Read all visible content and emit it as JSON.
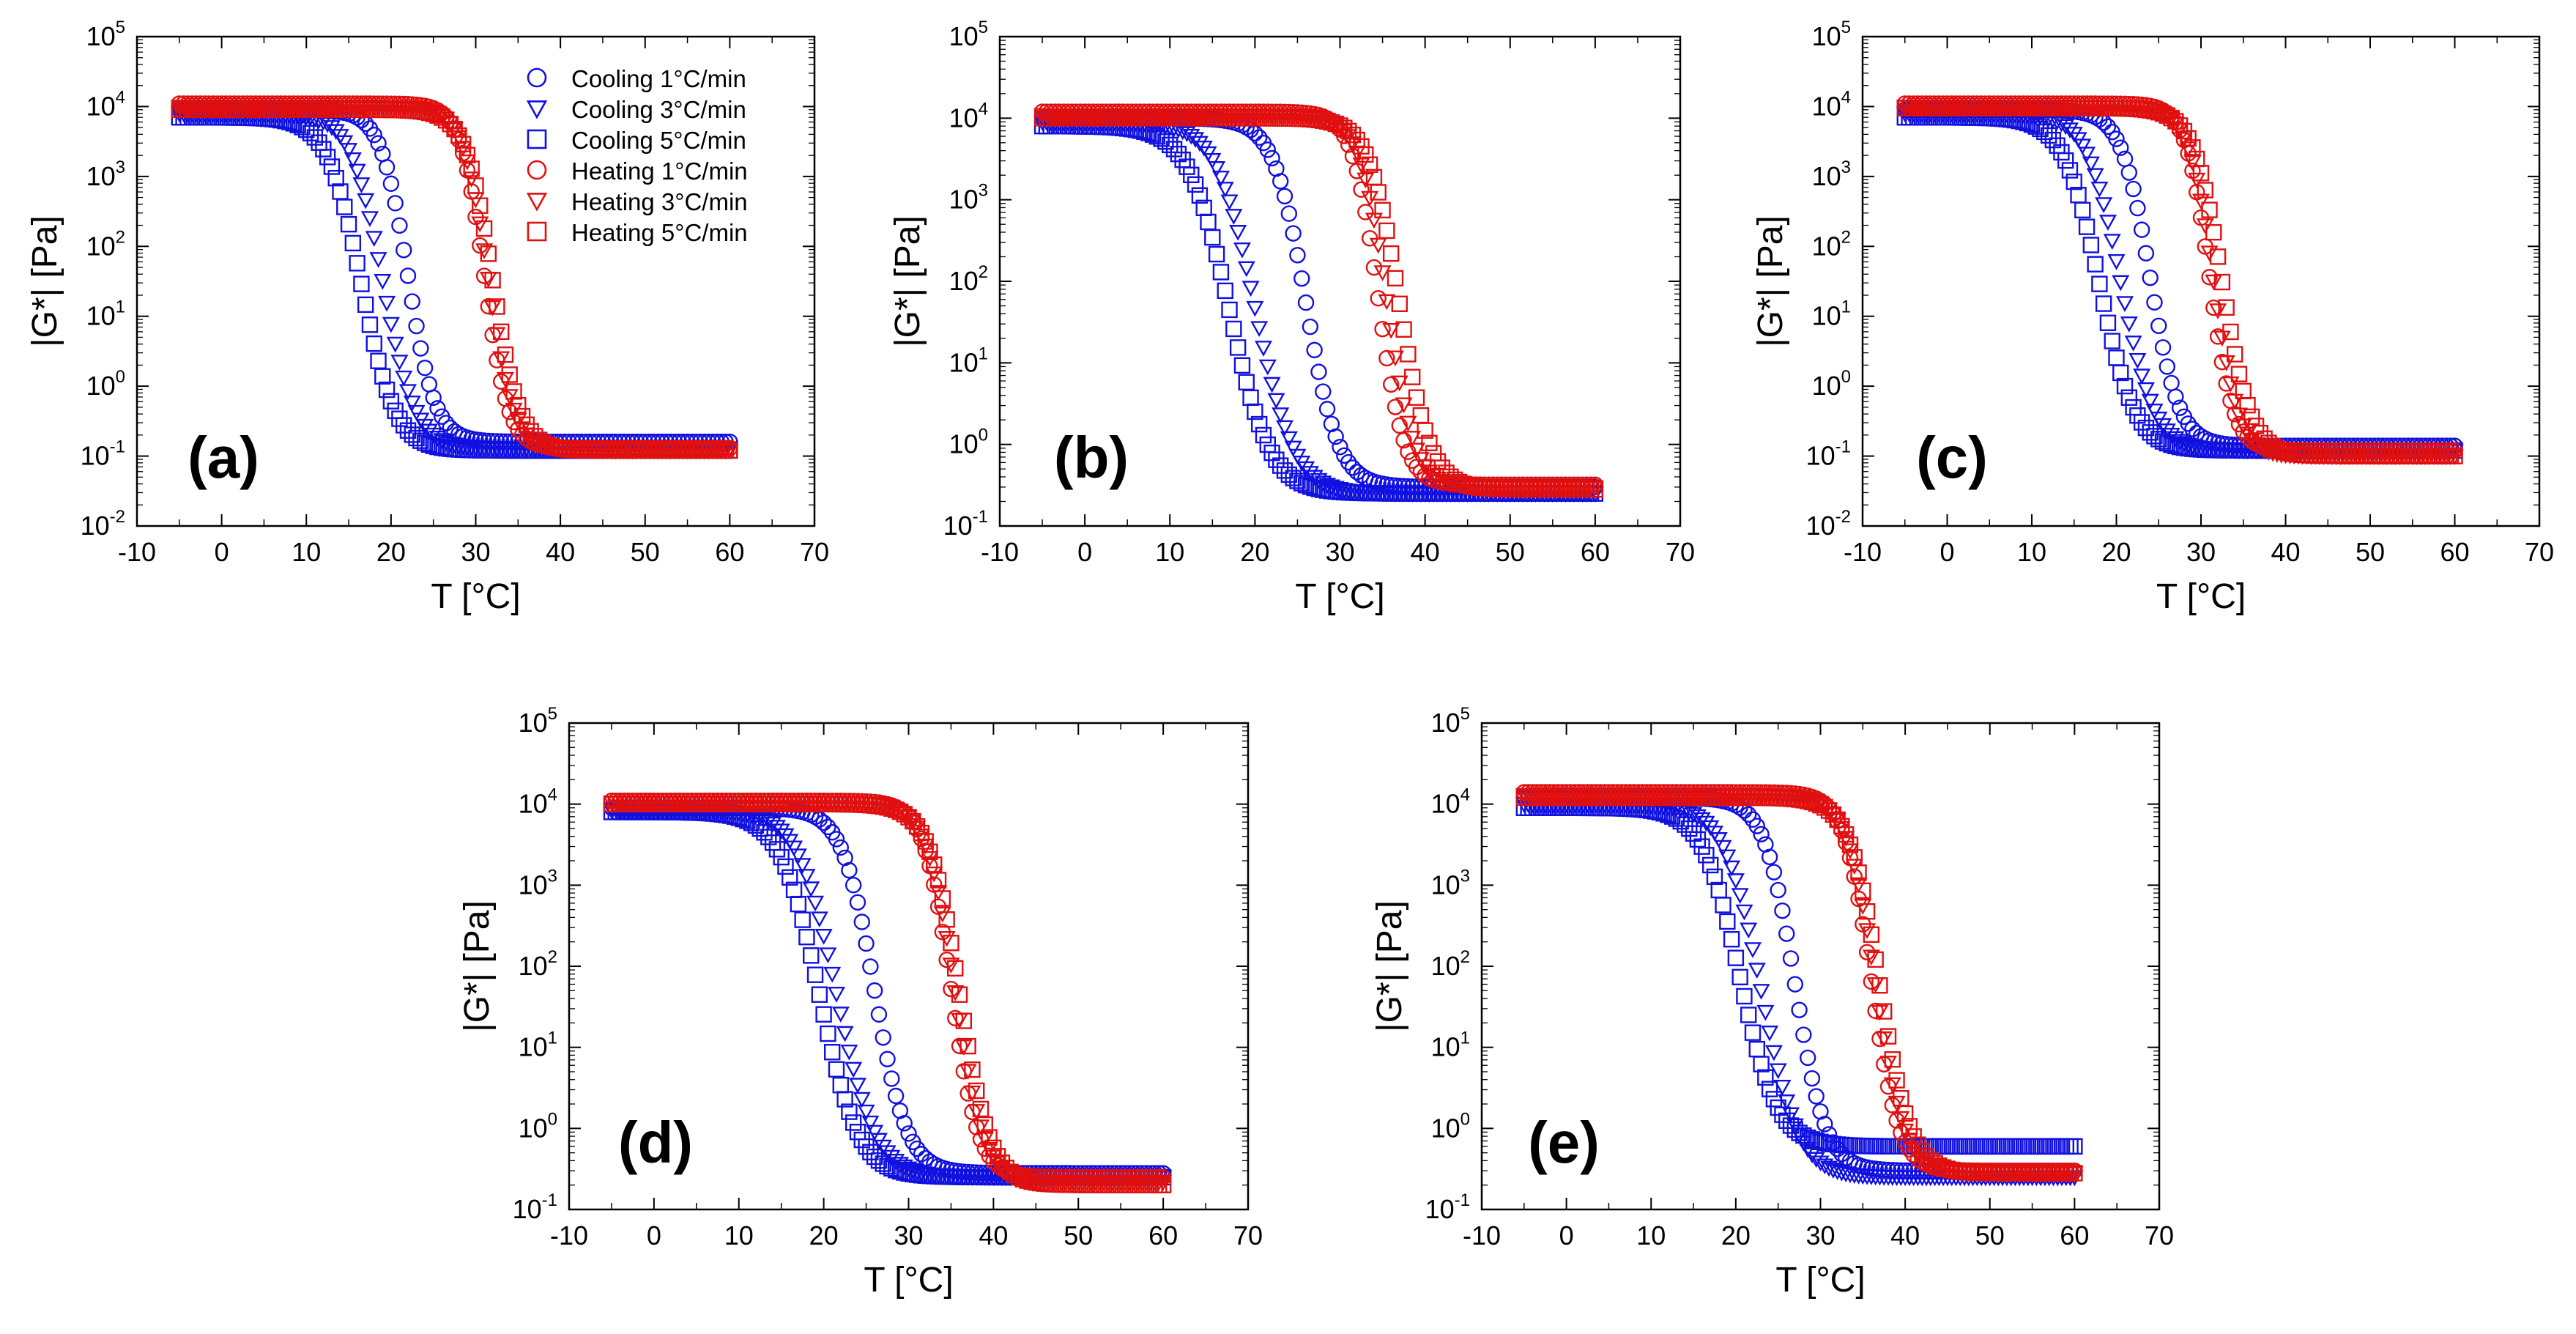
{
  "figure": {
    "x_axis_title": "T [°C]",
    "y_axis_title": "|G*| [Pa]",
    "x_tick_labels": [
      "-10",
      "0",
      "10",
      "20",
      "30",
      "40",
      "50",
      "60",
      "70"
    ],
    "y_tick_base": "10",
    "cooling_color": "#1010e0",
    "heating_color": "#e01010"
  },
  "legend": {
    "entries": [
      {
        "label": "Cooling 1°C/min",
        "color": "#1010e0",
        "marker": "circle"
      },
      {
        "label": "Cooling 3°C/min",
        "color": "#1010e0",
        "marker": "triangle-down"
      },
      {
        "label": "Cooling 5°C/min",
        "color": "#1010e0",
        "marker": "square"
      },
      {
        "label": "Heating 1°C/min",
        "color": "#e01010",
        "marker": "circle"
      },
      {
        "label": "Heating 3°C/min",
        "color": "#e01010",
        "marker": "triangle-down"
      },
      {
        "label": "Heating 5°C/min",
        "color": "#e01010",
        "marker": "square"
      }
    ]
  },
  "chart_data": [
    {
      "type": "scatter",
      "panel_label": "(a)",
      "xlabel": "T [°C]",
      "ylabel": "|G*| [Pa]",
      "xlim": [
        -10,
        70
      ],
      "ylim_exponent": [
        -2,
        5
      ],
      "yscale": "log",
      "x_range_data": [
        -5,
        60
      ],
      "series": [
        {
          "name": "Cooling 1°C/min",
          "high": 9000,
          "low": 0.16,
          "t_mid": 22,
          "width": 1.6
        },
        {
          "name": "Cooling 3°C/min",
          "high": 8000,
          "low": 0.13,
          "t_mid": 19,
          "width": 1.9
        },
        {
          "name": "Cooling 5°C/min",
          "high": 7000,
          "low": 0.12,
          "t_mid": 16.5,
          "width": 2.0
        },
        {
          "name": "Heating 1°C/min",
          "high": 11000,
          "low": 0.13,
          "t_mid": 31,
          "width": 1.4
        },
        {
          "name": "Heating 3°C/min",
          "high": 10000,
          "low": 0.12,
          "t_mid": 31.5,
          "width": 1.5
        },
        {
          "name": "Heating 5°C/min",
          "high": 9000,
          "low": 0.12,
          "t_mid": 32,
          "width": 1.6
        }
      ]
    },
    {
      "type": "scatter",
      "panel_label": "(b)",
      "xlabel": "T [°C]",
      "ylabel": "|G*| [Pa]",
      "xlim": [
        -10,
        70
      ],
      "ylim_exponent": [
        -1,
        5
      ],
      "yscale": "log",
      "x_range_data": [
        -5,
        60
      ],
      "series": [
        {
          "name": "Cooling 1°C/min",
          "high": 10000,
          "low": 0.3,
          "t_mid": 26,
          "width": 1.9
        },
        {
          "name": "Cooling 3°C/min",
          "high": 9000,
          "low": 0.25,
          "t_mid": 20,
          "width": 2.3
        },
        {
          "name": "Cooling 5°C/min",
          "high": 8000,
          "low": 0.25,
          "t_mid": 17,
          "width": 2.4
        },
        {
          "name": "Heating 1°C/min",
          "high": 12000,
          "low": 0.32,
          "t_mid": 34.5,
          "width": 1.5
        },
        {
          "name": "Heating 3°C/min",
          "high": 11000,
          "low": 0.3,
          "t_mid": 35.5,
          "width": 1.6
        },
        {
          "name": "Heating 5°C/min",
          "high": 10000,
          "low": 0.28,
          "t_mid": 37,
          "width": 1.8
        }
      ]
    },
    {
      "type": "scatter",
      "panel_label": "(c)",
      "xlabel": "T [°C]",
      "ylabel": "|G*| [Pa]",
      "xlim": [
        -10,
        70
      ],
      "ylim_exponent": [
        -2,
        5
      ],
      "yscale": "log",
      "x_range_data": [
        -5,
        60
      ],
      "series": [
        {
          "name": "Cooling 1°C/min",
          "high": 9000,
          "low": 0.14,
          "t_mid": 24,
          "width": 1.7
        },
        {
          "name": "Cooling 3°C/min",
          "high": 8000,
          "low": 0.12,
          "t_mid": 20.5,
          "width": 2.0
        },
        {
          "name": "Cooling 5°C/min",
          "high": 7000,
          "low": 0.12,
          "t_mid": 18,
          "width": 2.1
        },
        {
          "name": "Heating 1°C/min",
          "high": 11000,
          "low": 0.12,
          "t_mid": 31,
          "width": 1.4
        },
        {
          "name": "Heating 3°C/min",
          "high": 10000,
          "low": 0.1,
          "t_mid": 31.5,
          "width": 1.5
        },
        {
          "name": "Heating 5°C/min",
          "high": 9500,
          "low": 0.1,
          "t_mid": 32.5,
          "width": 1.7
        }
      ]
    },
    {
      "type": "scatter",
      "panel_label": "(d)",
      "xlabel": "T [°C]",
      "ylabel": "|G*| [Pa]",
      "xlim": [
        -10,
        70
      ],
      "ylim_exponent": [
        -1,
        5
      ],
      "yscale": "log",
      "x_range_data": [
        -5,
        60
      ],
      "series": [
        {
          "name": "Cooling 1°C/min",
          "high": 9000,
          "low": 0.28,
          "t_mid": 26,
          "width": 1.9
        },
        {
          "name": "Cooling 3°C/min",
          "high": 8500,
          "low": 0.25,
          "t_mid": 21.5,
          "width": 2.3
        },
        {
          "name": "Cooling 5°C/min",
          "high": 8000,
          "low": 0.25,
          "t_mid": 19.5,
          "width": 2.3
        },
        {
          "name": "Heating 1°C/min",
          "high": 11000,
          "low": 0.25,
          "t_mid": 35,
          "width": 1.6
        },
        {
          "name": "Heating 3°C/min",
          "high": 10500,
          "low": 0.22,
          "t_mid": 35.5,
          "width": 1.7
        },
        {
          "name": "Heating 5°C/min",
          "high": 10000,
          "low": 0.2,
          "t_mid": 36,
          "width": 1.8
        }
      ]
    },
    {
      "type": "scatter",
      "panel_label": "(e)",
      "xlabel": "T [°C]",
      "ylabel": "|G*| [Pa]",
      "xlim": [
        -10,
        70
      ],
      "ylim_exponent": [
        -1,
        5
      ],
      "yscale": "log",
      "x_range_data": [
        -5,
        60
      ],
      "series": [
        {
          "name": "Cooling 1°C/min",
          "high": 12000,
          "low": 0.3,
          "t_mid": 27,
          "width": 1.8
        },
        {
          "name": "Cooling 3°C/min",
          "high": 10000,
          "low": 0.25,
          "t_mid": 23,
          "width": 2.2
        },
        {
          "name": "Cooling 5°C/min",
          "high": 9000,
          "low": 0.6,
          "t_mid": 20.5,
          "width": 2.2
        },
        {
          "name": "Heating 1°C/min",
          "high": 14000,
          "low": 0.3,
          "t_mid": 36,
          "width": 1.6
        },
        {
          "name": "Heating 3°C/min",
          "high": 13000,
          "low": 0.28,
          "t_mid": 36.5,
          "width": 1.7
        },
        {
          "name": "Heating 5°C/min",
          "high": 12000,
          "low": 0.28,
          "t_mid": 37,
          "width": 1.8
        }
      ]
    }
  ]
}
